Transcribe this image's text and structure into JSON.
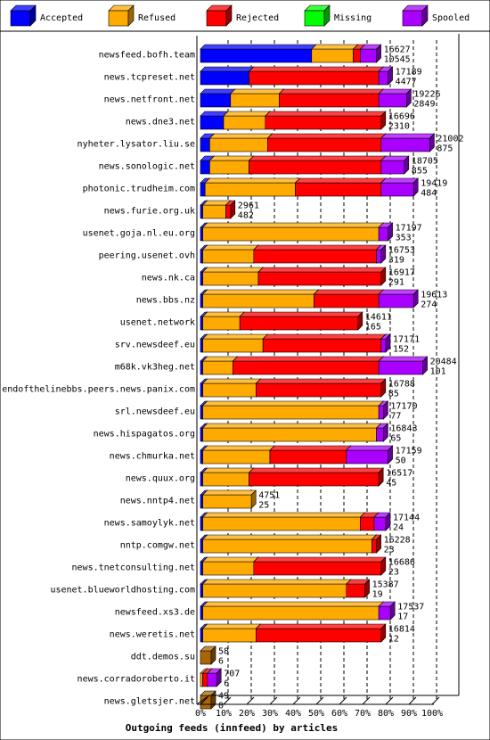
{
  "chart_data": {
    "type": "bar",
    "orientation": "horizontal",
    "stacked": true,
    "units": "percent",
    "title": "Outgoing feeds (innfeed) by articles",
    "xlim": [
      0,
      100
    ],
    "xticks": [
      "0%",
      "10%",
      "20%",
      "30%",
      "40%",
      "50%",
      "60%",
      "70%",
      "80%",
      "90%",
      "100%"
    ],
    "legend_position": "top",
    "series": [
      {
        "name": "Accepted",
        "color": "#0000ff"
      },
      {
        "name": "Refused",
        "color": "#ffaa00"
      },
      {
        "name": "Rejected",
        "color": "#ff0000"
      },
      {
        "name": "Missing",
        "color": "#00ff00"
      },
      {
        "name": "Spooled",
        "color": "#aa00ff"
      }
    ],
    "rows": [
      {
        "label": "newsfeed.bofh.team",
        "total": "16627",
        "accepted_count": "10545",
        "values": [
          48,
          18,
          3,
          0,
          7
        ]
      },
      {
        "label": "news.tcpreset.net",
        "total": "17189",
        "accepted_count": "4477",
        "values": [
          21,
          0,
          56,
          0,
          4
        ]
      },
      {
        "label": "news.netfront.net",
        "total": "19226",
        "accepted_count": "2849",
        "values": [
          13,
          21,
          43,
          0,
          12
        ]
      },
      {
        "label": "news.dne3.net",
        "total": "16696",
        "accepted_count": "2310",
        "values": [
          10,
          18,
          50,
          0,
          0
        ]
      },
      {
        "label": "nyheter.lysator.liu.se",
        "total": "21002",
        "accepted_count": "875",
        "values": [
          4,
          25,
          49,
          0,
          21
        ]
      },
      {
        "label": "news.sonologic.net",
        "total": "18705",
        "accepted_count": "855",
        "values": [
          4,
          17,
          57,
          0,
          10
        ]
      },
      {
        "label": "photonic.trudheim.com",
        "total": "19419",
        "accepted_count": "484",
        "values": [
          2,
          39,
          37,
          0,
          14
        ]
      },
      {
        "label": "news.furie.org.uk",
        "total": "2961",
        "accepted_count": "482",
        "values": [
          1,
          10,
          2,
          0,
          0
        ]
      },
      {
        "label": "usenet.goja.nl.eu.org",
        "total": "17197",
        "accepted_count": "353",
        "values": [
          1,
          76,
          0,
          0,
          4
        ]
      },
      {
        "label": "peering.usenet.ovh",
        "total": "16753",
        "accepted_count": "319",
        "values": [
          1,
          22,
          53,
          0,
          2
        ]
      },
      {
        "label": "news.nk.ca",
        "total": "16917",
        "accepted_count": "291",
        "values": [
          1,
          24,
          53,
          0,
          0
        ]
      },
      {
        "label": "news.bbs.nz",
        "total": "19613",
        "accepted_count": "274",
        "values": [
          1,
          48,
          28,
          0,
          15
        ]
      },
      {
        "label": "usenet.network",
        "total": "14611",
        "accepted_count": "165",
        "values": [
          1,
          16,
          51,
          0,
          0
        ]
      },
      {
        "label": "srv.newsdeef.eu",
        "total": "17171",
        "accepted_count": "152",
        "values": [
          1,
          26,
          51,
          0,
          2
        ]
      },
      {
        "label": "m68k.vk3heg.net",
        "total": "20484",
        "accepted_count": "101",
        "values": [
          1,
          13,
          63,
          0,
          19
        ]
      },
      {
        "label": "endofthelinebbs.peers.news.panix.com",
        "total": "16788",
        "accepted_count": "85",
        "values": [
          1,
          23,
          54,
          0,
          0
        ]
      },
      {
        "label": "srl.newsdeef.eu",
        "total": "17170",
        "accepted_count": "77",
        "values": [
          1,
          76,
          0,
          0,
          2
        ]
      },
      {
        "label": "news.hispagatos.org",
        "total": "16843",
        "accepted_count": "65",
        "values": [
          1,
          75,
          0,
          0,
          3
        ]
      },
      {
        "label": "news.chmurka.net",
        "total": "17159",
        "accepted_count": "50",
        "values": [
          1,
          29,
          33,
          0,
          18
        ]
      },
      {
        "label": "news.quux.org",
        "total": "16517",
        "accepted_count": "45",
        "values": [
          1,
          20,
          56,
          0,
          0
        ]
      },
      {
        "label": "news.nntp4.net",
        "total": "4751",
        "accepted_count": "25",
        "values": [
          1,
          21,
          0,
          0,
          0
        ]
      },
      {
        "label": "news.samoylyk.net",
        "total": "17144",
        "accepted_count": "24",
        "values": [
          1,
          68,
          6,
          0,
          5
        ]
      },
      {
        "label": "nntp.comgw.net",
        "total": "16228",
        "accepted_count": "23",
        "values": [
          1,
          73,
          2,
          0,
          0
        ]
      },
      {
        "label": "news.tnetconsulting.net",
        "total": "16686",
        "accepted_count": "23",
        "values": [
          1,
          22,
          55,
          0,
          0
        ]
      },
      {
        "label": "usenet.blueworldhosting.com",
        "total": "15387",
        "accepted_count": "19",
        "values": [
          1,
          62,
          8,
          0,
          0
        ]
      },
      {
        "label": "newsfeed.xs3.de",
        "total": "17537",
        "accepted_count": "17",
        "values": [
          1,
          76,
          0,
          0,
          5
        ]
      },
      {
        "label": "news.weretis.net",
        "total": "16814",
        "accepted_count": "12",
        "values": [
          1,
          23,
          54,
          0,
          0
        ]
      },
      {
        "label": "ddt.demos.su",
        "total": "58",
        "accepted_count": "6",
        "values": [
          0,
          0,
          0,
          0,
          0
        ]
      },
      {
        "label": "news.corradoroberto.it",
        "total": "707",
        "accepted_count": "6",
        "values": [
          0,
          1,
          2,
          0,
          4
        ]
      },
      {
        "label": "news.gletsjer.net",
        "total": "49",
        "accepted_count": "0",
        "values": [
          0,
          0,
          0,
          0,
          0
        ]
      }
    ]
  }
}
